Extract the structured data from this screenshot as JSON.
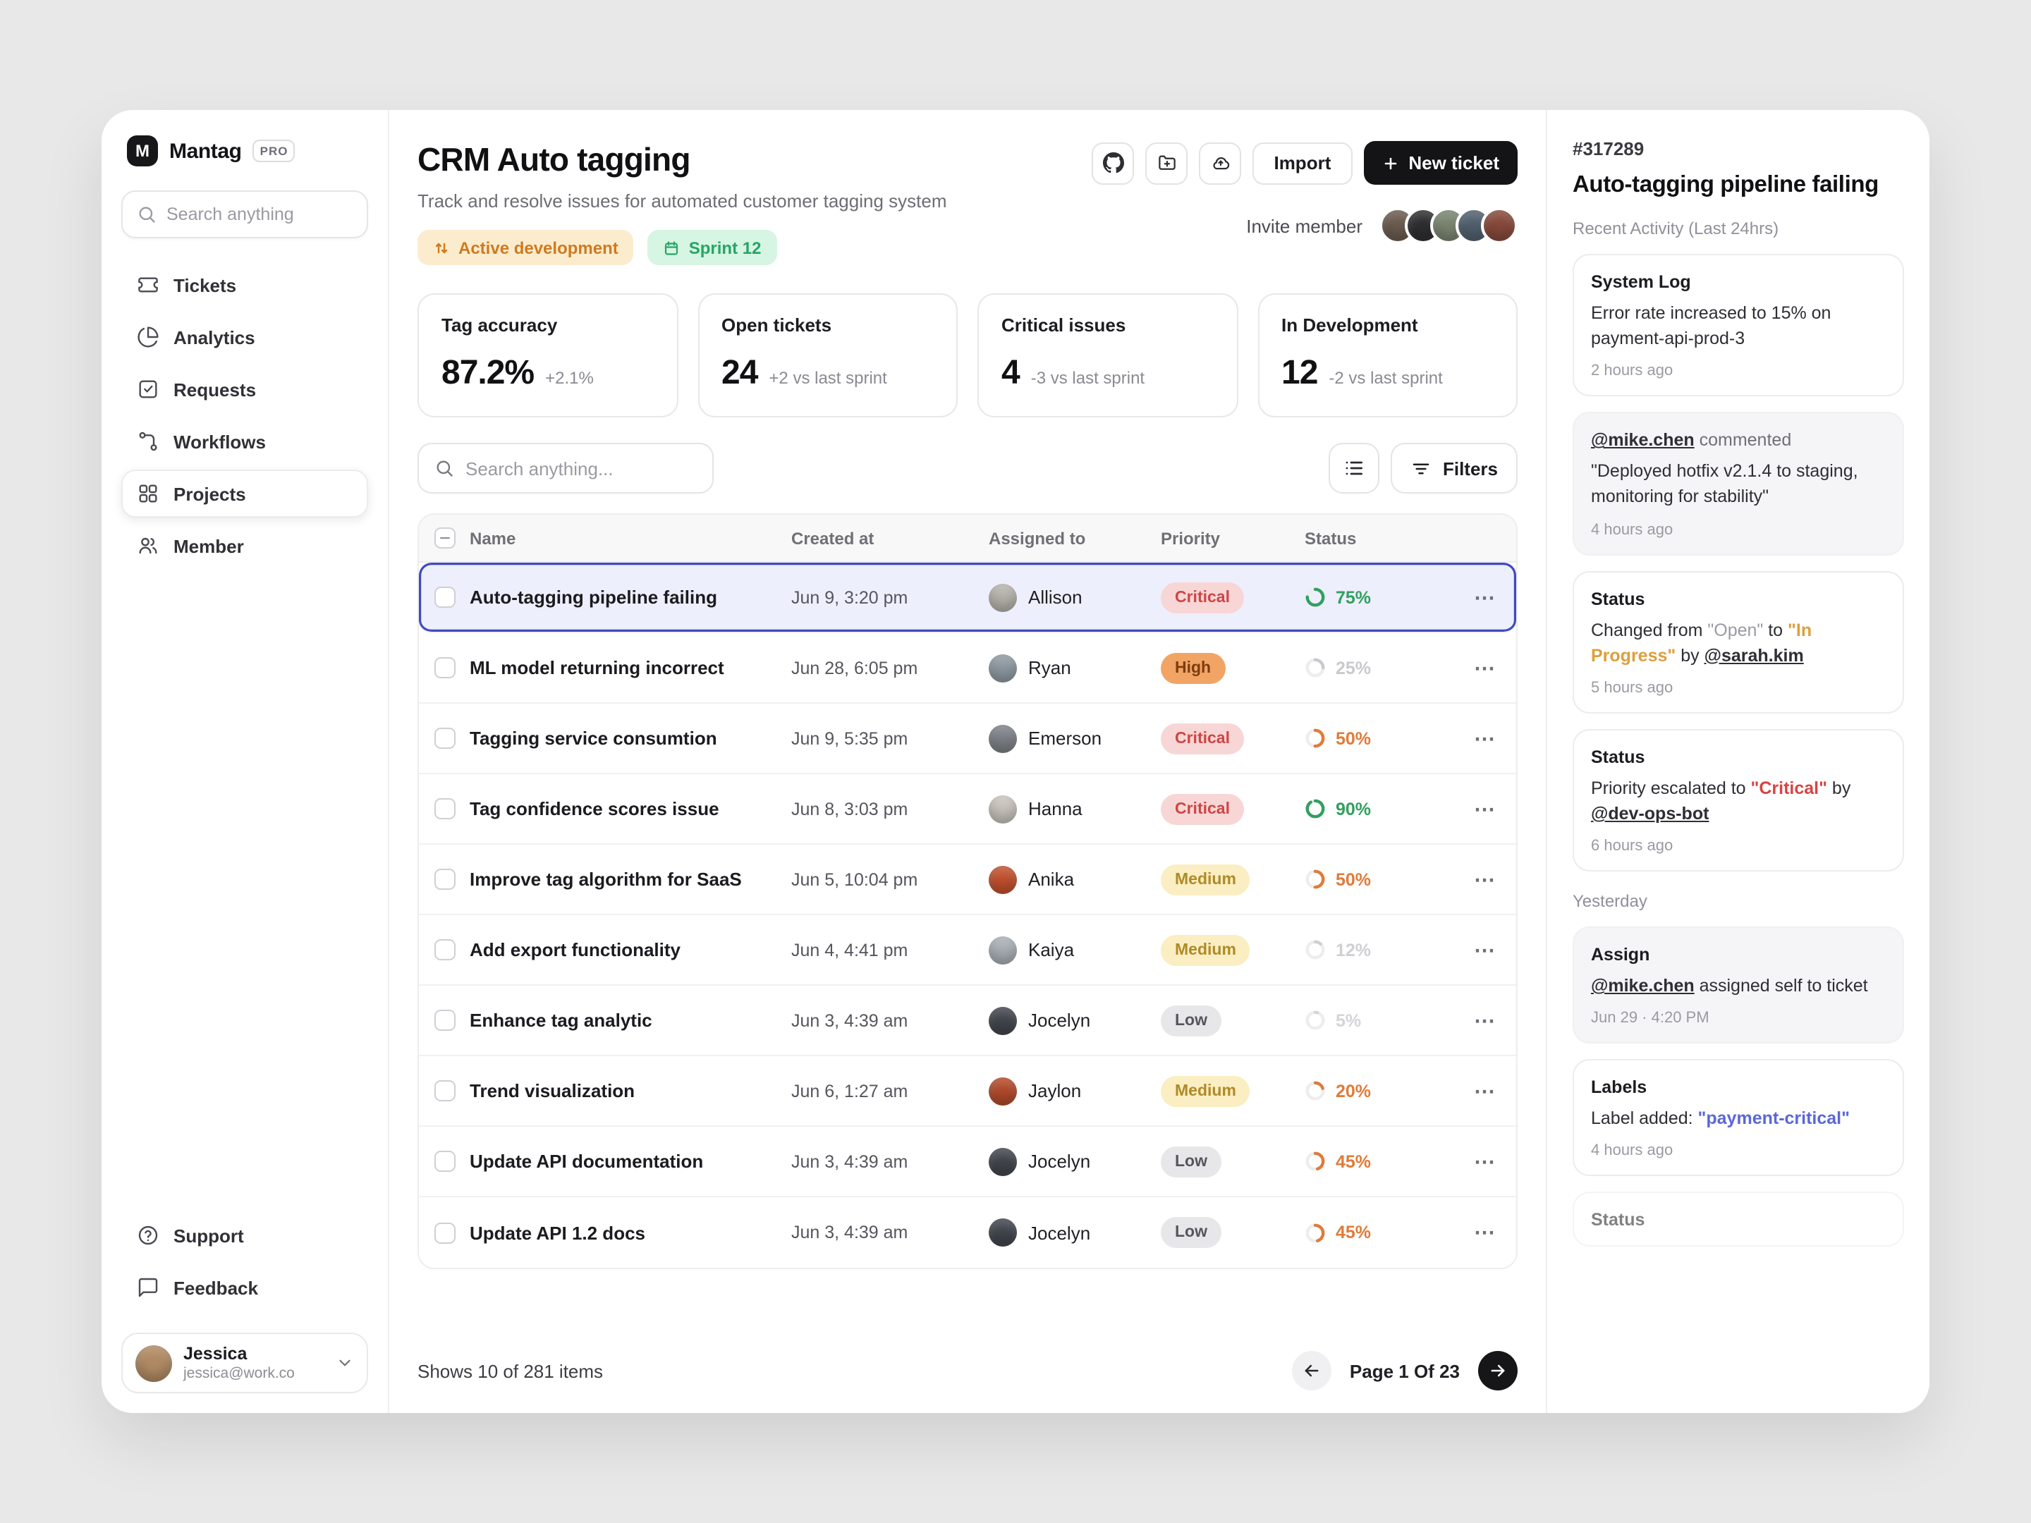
{
  "app": {
    "name": "Mantag",
    "plan_badge": "PRO",
    "logo_letter": "M"
  },
  "colors": {
    "primary_button": "#141417",
    "selected_row_border": "#3e4bbe",
    "green": "#31a05f",
    "orange": "#e07b39",
    "red": "#d84343",
    "link_purple": "#5b67d8"
  },
  "icons": {
    "header_tools": [
      "github-icon",
      "folder-add-icon",
      "cloud-icon"
    ],
    "toolbar": [
      "list-view-icon",
      "filter-icon"
    ]
  },
  "sidebar": {
    "search_placeholder": "Search anything",
    "items": [
      {
        "label": "Tickets"
      },
      {
        "label": "Analytics"
      },
      {
        "label": "Requests"
      },
      {
        "label": "Workflows"
      },
      {
        "label": "Projects",
        "active": true
      },
      {
        "label": "Member"
      }
    ],
    "footer_items": [
      {
        "label": "Support"
      },
      {
        "label": "Feedback"
      }
    ],
    "user": {
      "name": "Jessica",
      "email": "jessica@work.co",
      "avatar_color": "#b08a64"
    }
  },
  "header": {
    "title": "CRM Auto tagging",
    "subtitle": "Track and resolve issues for automated customer tagging system",
    "badges": [
      {
        "label": "Active development"
      },
      {
        "label": "Sprint 12"
      }
    ],
    "import_label": "Import",
    "new_ticket_label": "New ticket",
    "invite_label": "Invite member",
    "invite_avatars": [
      "#6b5b4f",
      "#2e2e31",
      "#7a8570",
      "#51606e",
      "#87493a"
    ]
  },
  "stats": [
    {
      "label": "Tag accuracy",
      "value": "87.2%",
      "delta": "+2.1%"
    },
    {
      "label": "Open tickets",
      "value": "24",
      "delta": "+2 vs last sprint"
    },
    {
      "label": "Critical issues",
      "value": "4",
      "delta": "-3 vs last sprint"
    },
    {
      "label": "In Development",
      "value": "12",
      "delta": "-2 vs last sprint"
    }
  ],
  "toolbar": {
    "search_placeholder": "Search anything...",
    "filters_label": "Filters"
  },
  "table": {
    "columns": {
      "name": "Name",
      "created": "Created at",
      "assigned": "Assigned to",
      "priority": "Priority",
      "status": "Status"
    },
    "rows": [
      {
        "name": "Auto-tagging pipeline failing",
        "created": "Jun 9, 3:20 pm",
        "assignee": "Allison",
        "avatar_color": "#b7b3ad",
        "priority": {
          "label": "Critical",
          "level": "critical"
        },
        "progress": {
          "pct": 75,
          "label": "75%",
          "color": "#31a05f"
        },
        "selected": true
      },
      {
        "name": "ML model returning incorrect",
        "created": "Jun 28, 6:05 pm",
        "assignee": "Ryan",
        "avatar_color": "#8f9aa3",
        "priority": {
          "label": "High",
          "level": "high"
        },
        "progress": {
          "pct": 25,
          "label": "25%",
          "color": "#c9c9ce"
        },
        "selected": false
      },
      {
        "name": "Tagging service consumtion",
        "created": "Jun 9, 5:35 pm",
        "assignee": "Emerson",
        "avatar_color": "#7d8288",
        "priority": {
          "label": "Critical",
          "level": "critical"
        },
        "progress": {
          "pct": 50,
          "label": "50%",
          "color": "#e07b39"
        },
        "selected": false
      },
      {
        "name": "Tag confidence scores issue",
        "created": "Jun 8, 3:03 pm",
        "assignee": "Hanna",
        "avatar_color": "#c9c4bd",
        "priority": {
          "label": "Critical",
          "level": "critical"
        },
        "progress": {
          "pct": 90,
          "label": "90%",
          "color": "#31a05f"
        },
        "selected": false
      },
      {
        "name": "Improve tag algorithm for SaaS",
        "created": "Jun 5, 10:04 pm",
        "assignee": "Anika",
        "avatar_color": "#c2502e",
        "priority": {
          "label": "Medium",
          "level": "medium"
        },
        "progress": {
          "pct": 50,
          "label": "50%",
          "color": "#e07b39"
        },
        "selected": false
      },
      {
        "name": "Add export functionality",
        "created": "Jun 4, 4:41 pm",
        "assignee": "Kaiya",
        "avatar_color": "#aab0b6",
        "priority": {
          "label": "Medium",
          "level": "medium"
        },
        "progress": {
          "pct": 12,
          "label": "12%",
          "color": "#cfcfd4"
        },
        "selected": false
      },
      {
        "name": "Enhance tag analytic",
        "created": "Jun 3, 4:39 am",
        "assignee": "Jocelyn",
        "avatar_color": "#41464d",
        "priority": {
          "label": "Low",
          "level": "low"
        },
        "progress": {
          "pct": 5,
          "label": "5%",
          "color": "#d4d4d9"
        },
        "selected": false
      },
      {
        "name": "Trend visualization",
        "created": "Jun 6, 1:27 am",
        "assignee": "Jaylon",
        "avatar_color": "#b34a2b",
        "priority": {
          "label": "Medium",
          "level": "medium"
        },
        "progress": {
          "pct": 20,
          "label": "20%",
          "color": "#e07b39"
        },
        "selected": false
      },
      {
        "name": "Update API documentation",
        "created": "Jun 3, 4:39 am",
        "assignee": "Jocelyn",
        "avatar_color": "#41464d",
        "priority": {
          "label": "Low",
          "level": "low"
        },
        "progress": {
          "pct": 45,
          "label": "45%",
          "color": "#e07b39"
        },
        "selected": false
      },
      {
        "name": "Update API 1.2 docs",
        "created": "Jun 3, 4:39 am",
        "assignee": "Jocelyn",
        "avatar_color": "#41464d",
        "priority": {
          "label": "Low",
          "level": "low"
        },
        "progress": {
          "pct": 45,
          "label": "45%",
          "color": "#e07b39"
        },
        "selected": false
      }
    ],
    "footer": {
      "summary": "Shows 10 of 281 items",
      "page": "Page 1 Of 23"
    }
  },
  "detail": {
    "ticket_id": "#317289",
    "title": "Auto-tagging pipeline failing",
    "section_recent": "Recent Activity (Last 24hrs)",
    "cards": {
      "system_log": {
        "title": "System Log",
        "body": "Error rate increased to 15% on payment-api-prod-3",
        "time": "2 hours ago"
      },
      "comment": {
        "user": "@mike.chen",
        "action": " commented",
        "body": "\"Deployed hotfix v2.1.4 to staging, monitoring for stability\"",
        "time": "4 hours ago"
      },
      "status_change": {
        "title": "Status",
        "prefix": "Changed from ",
        "from": "\"Open\"",
        "mid": " to ",
        "to": "\"In Progress\"",
        "by": " by ",
        "user": "@sarah.kim",
        "time": "5 hours ago"
      },
      "status_escalation": {
        "title": "Status",
        "prefix": "Priority escalated to ",
        "value": "\"Critical\"",
        "by": " by ",
        "user": "@dev-ops-bot",
        "time": "6 hours ago"
      }
    },
    "section_yesterday": "Yesterday",
    "assign": {
      "title": "Assign",
      "user": "@mike.chen",
      "rest": " assigned self to ticket",
      "time": "Jun 29 · 4:20 PM"
    },
    "labels": {
      "title": "Labels",
      "prefix": "Label added: ",
      "value": "\"payment-critical\"",
      "time": "4 hours ago"
    },
    "partial_card": {
      "title": "Status"
    }
  }
}
